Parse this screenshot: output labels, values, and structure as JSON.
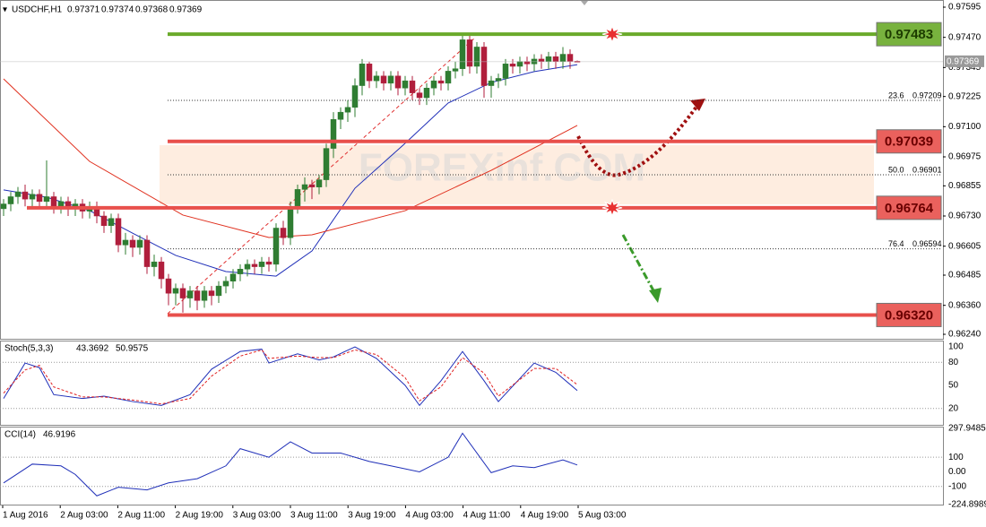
{
  "chart_data": {
    "type": "candlestick",
    "symbol": "USDCHF,H1",
    "up_color": "#2f7d32",
    "down_color": "#b01e3c",
    "ylim": [
      0.9624,
      0.97595
    ],
    "yticks": [
      0.97595,
      {
        "value": 0.9747,
        "label": "0.97470"
      },
      0.97345,
      0.97225,
      {
        "value": 0.971,
        "label": "0.97100"
      },
      0.96975,
      0.96855,
      {
        "value": 0.9673,
        "label": "0.96730"
      },
      0.96605,
      0.96485,
      {
        "value": 0.9636,
        "label": "0.96360"
      },
      {
        "value": 0.9624,
        "label": "0.96240"
      }
    ],
    "time_labels": [
      "1 Aug 2016",
      "2 Aug 03:00",
      "2 Aug 11:00",
      "2 Aug 19:00",
      "3 Aug 03:00",
      "3 Aug 11:00",
      "3 Aug 19:00",
      "4 Aug 03:00",
      "4 Aug 11:00",
      "4 Aug 19:00",
      "5 Aug 03:00"
    ],
    "candles": [
      [
        0.9676,
        0.968,
        0.9673,
        0.9678
      ],
      [
        0.9678,
        0.9683,
        0.9675,
        0.9681
      ],
      [
        0.9681,
        0.9685,
        0.9678,
        0.9683
      ],
      [
        0.9683,
        0.9686,
        0.9677,
        0.968
      ],
      [
        0.968,
        0.9684,
        0.9677,
        0.9682
      ],
      [
        0.9682,
        0.9684,
        0.9676,
        0.9679
      ],
      [
        0.9679,
        0.9696,
        0.9676,
        0.9681
      ],
      [
        0.9681,
        0.9683,
        0.9674,
        0.9677
      ],
      [
        0.9677,
        0.9681,
        0.9674,
        0.9679
      ],
      [
        0.9679,
        0.9681,
        0.9673,
        0.9676
      ],
      [
        0.9676,
        0.968,
        0.9673,
        0.9678
      ],
      [
        0.9678,
        0.968,
        0.9672,
        0.9675
      ],
      [
        0.9675,
        0.9679,
        0.9672,
        0.9677
      ],
      [
        0.9677,
        0.9679,
        0.967,
        0.9673
      ],
      [
        0.9673,
        0.9675,
        0.9666,
        0.9669
      ],
      [
        0.9669,
        0.9674,
        0.9666,
        0.9672
      ],
      [
        0.9672,
        0.9674,
        0.9658,
        0.9661
      ],
      [
        0.9661,
        0.9666,
        0.9657,
        0.9663
      ],
      [
        0.9663,
        0.9665,
        0.9656,
        0.966
      ],
      [
        0.966,
        0.9665,
        0.9657,
        0.9663
      ],
      [
        0.9663,
        0.9665,
        0.9649,
        0.9652
      ],
      [
        0.9652,
        0.9657,
        0.9648,
        0.9654
      ],
      [
        0.9654,
        0.9656,
        0.9643,
        0.9647
      ],
      [
        0.9647,
        0.9649,
        0.9636,
        0.9641
      ],
      [
        0.9641,
        0.9645,
        0.9636,
        0.9643
      ],
      [
        0.9643,
        0.9645,
        0.9633,
        0.9639
      ],
      [
        0.9639,
        0.9644,
        0.9635,
        0.9642
      ],
      [
        0.9642,
        0.9644,
        0.9634,
        0.9638
      ],
      [
        0.9638,
        0.9644,
        0.9635,
        0.9642
      ],
      [
        0.9642,
        0.9644,
        0.9636,
        0.964
      ],
      [
        0.964,
        0.9646,
        0.9637,
        0.9644
      ],
      [
        0.9644,
        0.9648,
        0.9641,
        0.9646
      ],
      [
        0.9646,
        0.9651,
        0.9643,
        0.9649
      ],
      [
        0.9649,
        0.9653,
        0.9646,
        0.9651
      ],
      [
        0.9651,
        0.9655,
        0.9648,
        0.9653
      ],
      [
        0.9653,
        0.9655,
        0.9649,
        0.9652
      ],
      [
        0.9652,
        0.9656,
        0.9649,
        0.9654
      ],
      [
        0.9654,
        0.9656,
        0.965,
        0.9653
      ],
      [
        0.9653,
        0.967,
        0.965,
        0.9668
      ],
      [
        0.9668,
        0.9671,
        0.9661,
        0.9664
      ],
      [
        0.9664,
        0.9679,
        0.9661,
        0.9677
      ],
      [
        0.9677,
        0.9686,
        0.9674,
        0.9684
      ],
      [
        0.9684,
        0.9689,
        0.9679,
        0.9686
      ],
      [
        0.9686,
        0.9688,
        0.968,
        0.9685
      ],
      [
        0.9685,
        0.969,
        0.9682,
        0.9688
      ],
      [
        0.9688,
        0.9703,
        0.9685,
        0.9701
      ],
      [
        0.9701,
        0.9716,
        0.9697,
        0.9713
      ],
      [
        0.9713,
        0.9718,
        0.9709,
        0.9716
      ],
      [
        0.9716,
        0.9721,
        0.9712,
        0.9718
      ],
      [
        0.9718,
        0.973,
        0.9714,
        0.9727
      ],
      [
        0.9727,
        0.9738,
        0.9723,
        0.9736
      ],
      [
        0.9736,
        0.9737,
        0.9726,
        0.9729
      ],
      [
        0.9729,
        0.9733,
        0.9726,
        0.9731
      ],
      [
        0.9731,
        0.9733,
        0.9725,
        0.9728
      ],
      [
        0.9728,
        0.9733,
        0.9725,
        0.9731
      ],
      [
        0.9731,
        0.9733,
        0.9723,
        0.9726
      ],
      [
        0.9726,
        0.9731,
        0.9723,
        0.9729
      ],
      [
        0.9729,
        0.9731,
        0.9721,
        0.9724
      ],
      [
        0.9724,
        0.9726,
        0.9719,
        0.9722
      ],
      [
        0.9722,
        0.9728,
        0.9719,
        0.9726
      ],
      [
        0.9726,
        0.9731,
        0.9723,
        0.9729
      ],
      [
        0.9729,
        0.9731,
        0.9725,
        0.9728
      ],
      [
        0.9728,
        0.9735,
        0.9725,
        0.9733
      ],
      [
        0.9733,
        0.9737,
        0.973,
        0.9734
      ],
      [
        0.9734,
        0.9748,
        0.9731,
        0.9746
      ],
      [
        0.9746,
        0.9748,
        0.9732,
        0.9735
      ],
      [
        0.9735,
        0.9745,
        0.9732,
        0.9743
      ],
      [
        0.9743,
        0.9745,
        0.9722,
        0.9727
      ],
      [
        0.9727,
        0.9731,
        0.9722,
        0.9729
      ],
      [
        0.9729,
        0.9732,
        0.9726,
        0.973
      ],
      [
        0.973,
        0.9738,
        0.9727,
        0.9736
      ],
      [
        0.9736,
        0.9738,
        0.9732,
        0.9735
      ],
      [
        0.9735,
        0.9739,
        0.9732,
        0.9737
      ],
      [
        0.9737,
        0.9739,
        0.9733,
        0.9736
      ],
      [
        0.9736,
        0.974,
        0.9733,
        0.9738
      ],
      [
        0.9738,
        0.974,
        0.9734,
        0.9737
      ],
      [
        0.9737,
        0.9741,
        0.9734,
        0.9739
      ],
      [
        0.9739,
        0.9741,
        0.9734,
        0.9737
      ],
      [
        0.9737,
        0.9743,
        0.9734,
        0.974
      ],
      [
        0.974,
        0.9742,
        0.9734,
        0.97371
      ],
      [
        0.97371,
        0.97374,
        0.97368,
        0.97369
      ]
    ],
    "moving_averages": [
      {
        "color": "#1f2fb8",
        "x": [
          0,
          6,
          12,
          18,
          24,
          31,
          38,
          43,
          49,
          56,
          62,
          68,
          74,
          80
        ],
        "values": [
          0.96838,
          0.96808,
          0.96752,
          0.96659,
          0.96567,
          0.965,
          0.96481,
          0.96585,
          0.96845,
          0.97031,
          0.97198,
          0.97283,
          0.97328,
          0.97357
        ]
      },
      {
        "color": "#e0301e",
        "x": [
          0,
          12,
          25,
          37,
          43,
          56,
          68,
          80
        ],
        "values": [
          0.97298,
          0.96956,
          0.96734,
          0.96641,
          0.96652,
          0.96752,
          0.96919,
          0.97105
        ]
      }
    ],
    "levels": [
      {
        "value": 0.97483,
        "color": "#6aaa2a"
      },
      {
        "value": 0.97039,
        "color": "#e8504c"
      },
      {
        "value": 0.96764,
        "color": "#e8504c"
      },
      {
        "value": 0.9632,
        "label": "0.96320",
        "color": "#e8504c"
      }
    ],
    "fib_levels": [
      {
        "ratio": "23.6",
        "value": 0.97209
      },
      {
        "ratio": "50.0",
        "value": 0.96901
      },
      {
        "ratio": "76.4",
        "value": 0.96594
      }
    ],
    "watermark": "FOREXinf.COM",
    "stochastic": {
      "name": "Stoch(5,3,3)",
      "ylim": [
        0,
        100
      ],
      "yticks": [
        100,
        80,
        50,
        20
      ],
      "x": [
        0,
        3,
        5,
        7,
        11,
        14,
        18,
        22,
        26,
        29,
        33,
        36,
        37,
        41,
        44,
        46,
        49,
        52,
        56,
        58,
        61,
        64,
        67,
        69,
        74,
        77,
        80
      ],
      "series": [
        {
          "color": "#1f2fb8",
          "values": [
            33,
            79,
            73,
            38,
            33,
            36,
            29,
            24,
            38,
            71,
            94,
            97,
            79,
            91,
            83,
            87,
            100,
            85,
            50,
            24,
            56,
            94,
            56,
            29,
            79,
            67,
            43.3692
          ]
        },
        {
          "color": "#e02020",
          "values": [
            40,
            70,
            76,
            48,
            35,
            35,
            31,
            26,
            33,
            62,
            88,
            96,
            85,
            88,
            86,
            86,
            96,
            90,
            60,
            30,
            48,
            86,
            66,
            36,
            72,
            72,
            50.9575
          ]
        }
      ]
    },
    "cci": {
      "name": "CCI(14)",
      "ylim": [
        -224.8989,
        297.9485
      ],
      "yticks": [
        297.9485,
        100,
        {
          "value": 0,
          "label": "0.00"
        },
        -100,
        -224.8989
      ],
      "x": [
        0,
        4,
        8,
        10,
        13,
        16,
        20,
        23,
        27,
        31,
        33,
        37,
        40,
        43,
        47,
        51,
        54,
        58,
        62,
        64,
        68,
        71,
        74,
        78,
        80
      ],
      "color": "#1f2fb8",
      "values": [
        -76,
        53,
        41,
        -18,
        -165,
        -106,
        -124,
        -76,
        -47,
        41,
        159,
        100,
        206,
        129,
        129,
        71,
        41,
        0,
        100,
        265,
        -6,
        41,
        29,
        82,
        46.9196
      ]
    }
  }
}
